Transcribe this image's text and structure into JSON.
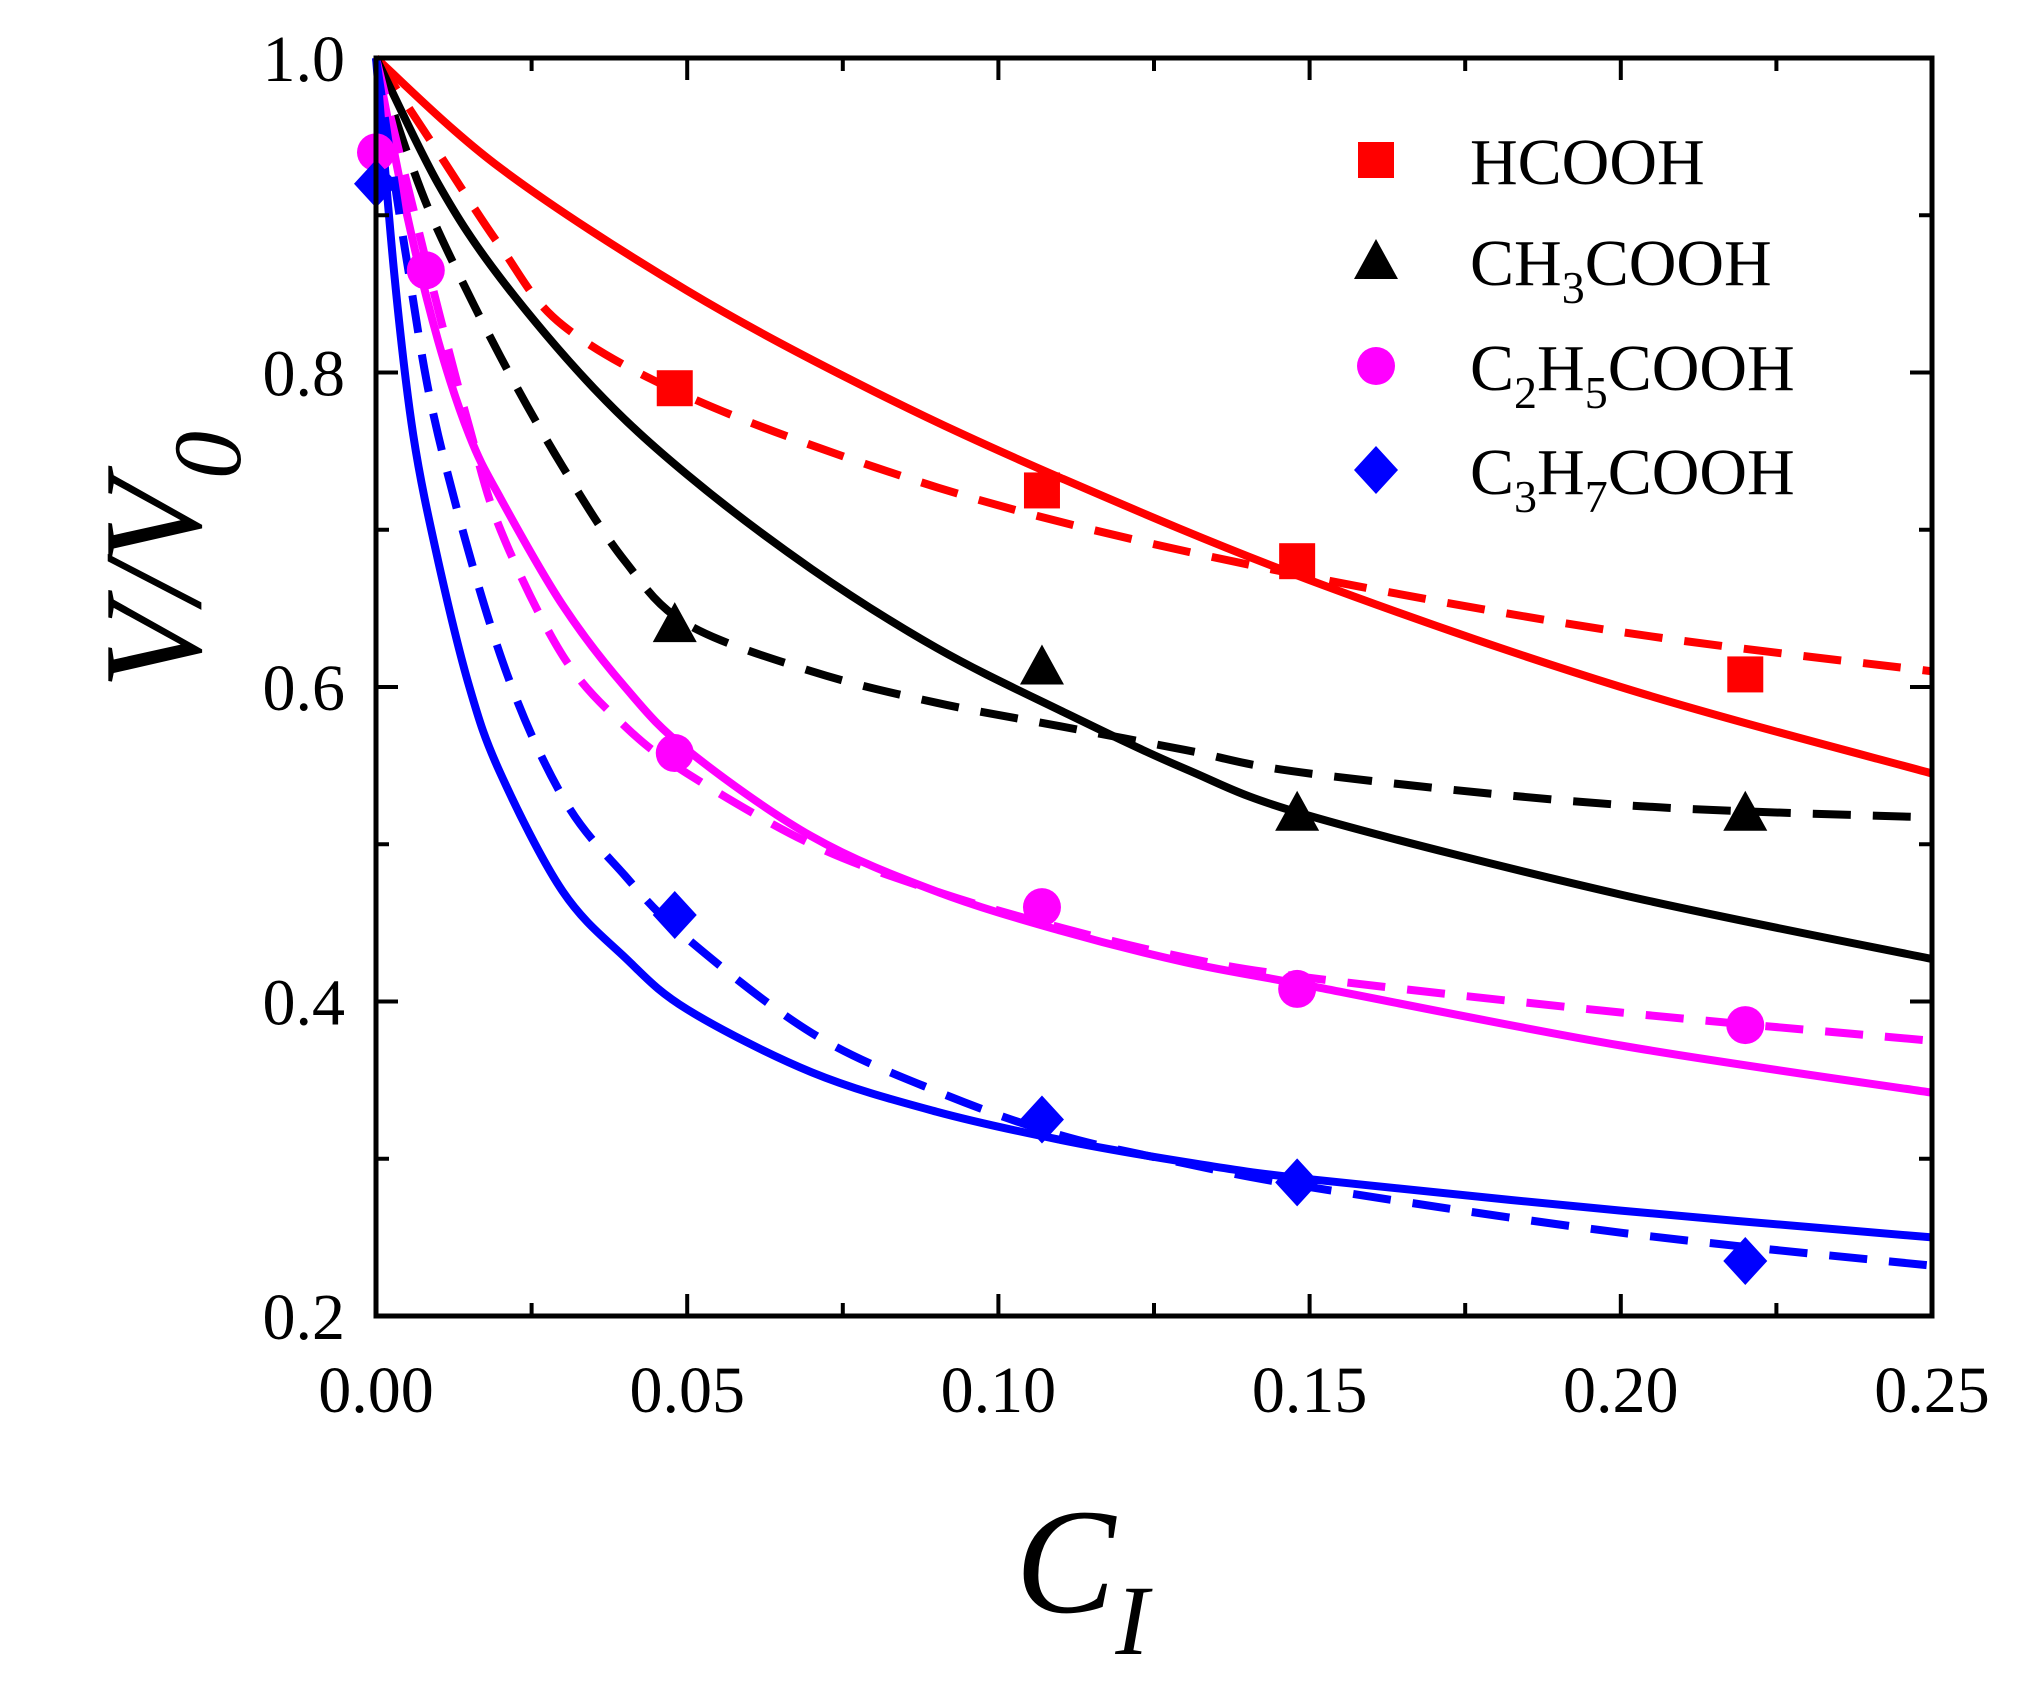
{
  "chart_data": {
    "type": "scatter",
    "xlabel": "C",
    "xlabel_sub": "I",
    "ylabel": "V/V",
    "ylabel_sub": "0",
    "xlim": [
      0.0,
      0.25
    ],
    "ylim": [
      0.2,
      1.0
    ],
    "xticks": [
      "0.00",
      "0.05",
      "0.10",
      "0.15",
      "0.20",
      "0.25"
    ],
    "yticks": [
      "0.2",
      "0.4",
      "0.6",
      "0.8",
      "1.0"
    ],
    "legend_position": "top-right",
    "series": [
      {
        "name": "HCOOH",
        "legend": {
          "main": "HCOOH",
          "parts": []
        },
        "color": "#ff0000",
        "marker": "square",
        "points": {
          "x": [
            0.048,
            0.107,
            0.148,
            0.22
          ],
          "y": [
            0.79,
            0.725,
            0.68,
            0.608
          ]
        },
        "fit_solid": {
          "x": [
            0.0,
            0.02,
            0.05,
            0.08,
            0.11,
            0.15,
            0.2,
            0.25
          ],
          "y": [
            1.0,
            0.93,
            0.852,
            0.788,
            0.733,
            0.668,
            0.6,
            0.545
          ]
        },
        "fit_dashed": {
          "x": [
            0.0,
            0.005,
            0.01,
            0.02,
            0.03,
            0.05,
            0.08,
            0.11,
            0.15,
            0.2,
            0.25
          ],
          "y": [
            1.0,
            0.97,
            0.94,
            0.88,
            0.83,
            0.785,
            0.74,
            0.705,
            0.67,
            0.635,
            0.61
          ]
        }
      },
      {
        "name": "CH3COOH",
        "legend": {
          "main": "CH",
          "parts": [
            [
              "3",
              "sub"
            ],
            [
              "COOH",
              "text"
            ]
          ]
        },
        "color": "#000000",
        "marker": "triangle",
        "points": {
          "x": [
            0.048,
            0.107,
            0.148,
            0.22
          ],
          "y": [
            0.64,
            0.613,
            0.52,
            0.52
          ]
        },
        "fit_solid": {
          "x": [
            0.0,
            0.01,
            0.02,
            0.035,
            0.05,
            0.07,
            0.09,
            0.11,
            0.13,
            0.15,
            0.2,
            0.25
          ],
          "y": [
            1.0,
            0.92,
            0.86,
            0.79,
            0.735,
            0.675,
            0.625,
            0.585,
            0.548,
            0.518,
            0.468,
            0.427
          ]
        },
        "fit_dashed": {
          "x": [
            0.0,
            0.005,
            0.01,
            0.02,
            0.03,
            0.04,
            0.05,
            0.07,
            0.09,
            0.11,
            0.13,
            0.15,
            0.2,
            0.25
          ],
          "y": [
            1.0,
            0.94,
            0.89,
            0.81,
            0.74,
            0.68,
            0.64,
            0.61,
            0.59,
            0.575,
            0.56,
            0.545,
            0.525,
            0.517
          ]
        }
      },
      {
        "name": "C2H5COOH",
        "legend": {
          "main": "C",
          "parts": [
            [
              "2",
              "sub"
            ],
            [
              "H",
              "text"
            ],
            [
              "5",
              "sub"
            ],
            [
              "COOH",
              "text"
            ]
          ]
        },
        "color": "#ff00ff",
        "marker": "circle",
        "points": {
          "x": [
            0.0,
            0.008,
            0.048,
            0.107,
            0.148,
            0.22
          ],
          "y": [
            0.94,
            0.865,
            0.558,
            0.46,
            0.408,
            0.385
          ]
        },
        "fit_solid": {
          "x": [
            0.0,
            0.005,
            0.01,
            0.015,
            0.02,
            0.03,
            0.04,
            0.05,
            0.07,
            0.09,
            0.11,
            0.13,
            0.15,
            0.2,
            0.25
          ],
          "y": [
            1.0,
            0.9,
            0.82,
            0.76,
            0.72,
            0.652,
            0.6,
            0.56,
            0.505,
            0.47,
            0.445,
            0.425,
            0.41,
            0.372,
            0.342
          ]
        },
        "fit_dashed": {
          "x": [
            0.0,
            0.005,
            0.01,
            0.015,
            0.02,
            0.03,
            0.04,
            0.05,
            0.07,
            0.09,
            0.11,
            0.13,
            0.15,
            0.2,
            0.25
          ],
          "y": [
            1.0,
            0.92,
            0.84,
            0.765,
            0.7,
            0.62,
            0.575,
            0.545,
            0.5,
            0.47,
            0.447,
            0.428,
            0.415,
            0.393,
            0.375
          ]
        }
      },
      {
        "name": "C3H7COOH",
        "legend": {
          "main": "C",
          "parts": [
            [
              "3",
              "sub"
            ],
            [
              "H",
              "text"
            ],
            [
              "7",
              "sub"
            ],
            [
              "COOH",
              "text"
            ]
          ]
        },
        "color": "#0000ff",
        "marker": "diamond",
        "points": {
          "x": [
            0.0,
            0.048,
            0.107,
            0.148,
            0.22
          ],
          "y": [
            0.92,
            0.455,
            0.325,
            0.285,
            0.235
          ]
        },
        "fit_solid": {
          "x": [
            0.0,
            0.003,
            0.006,
            0.01,
            0.015,
            0.02,
            0.03,
            0.04,
            0.05,
            0.07,
            0.09,
            0.11,
            0.13,
            0.15,
            0.2,
            0.25
          ],
          "y": [
            1.0,
            0.86,
            0.76,
            0.68,
            0.6,
            0.545,
            0.47,
            0.428,
            0.395,
            0.355,
            0.33,
            0.312,
            0.298,
            0.287,
            0.267,
            0.25
          ]
        },
        "fit_dashed": {
          "x": [
            0.0,
            0.005,
            0.01,
            0.02,
            0.03,
            0.04,
            0.05,
            0.07,
            0.09,
            0.11,
            0.13,
            0.15,
            0.2,
            0.25
          ],
          "y": [
            1.0,
            0.87,
            0.76,
            0.62,
            0.53,
            0.48,
            0.44,
            0.38,
            0.343,
            0.315,
            0.297,
            0.282,
            0.253,
            0.232
          ]
        }
      }
    ]
  }
}
